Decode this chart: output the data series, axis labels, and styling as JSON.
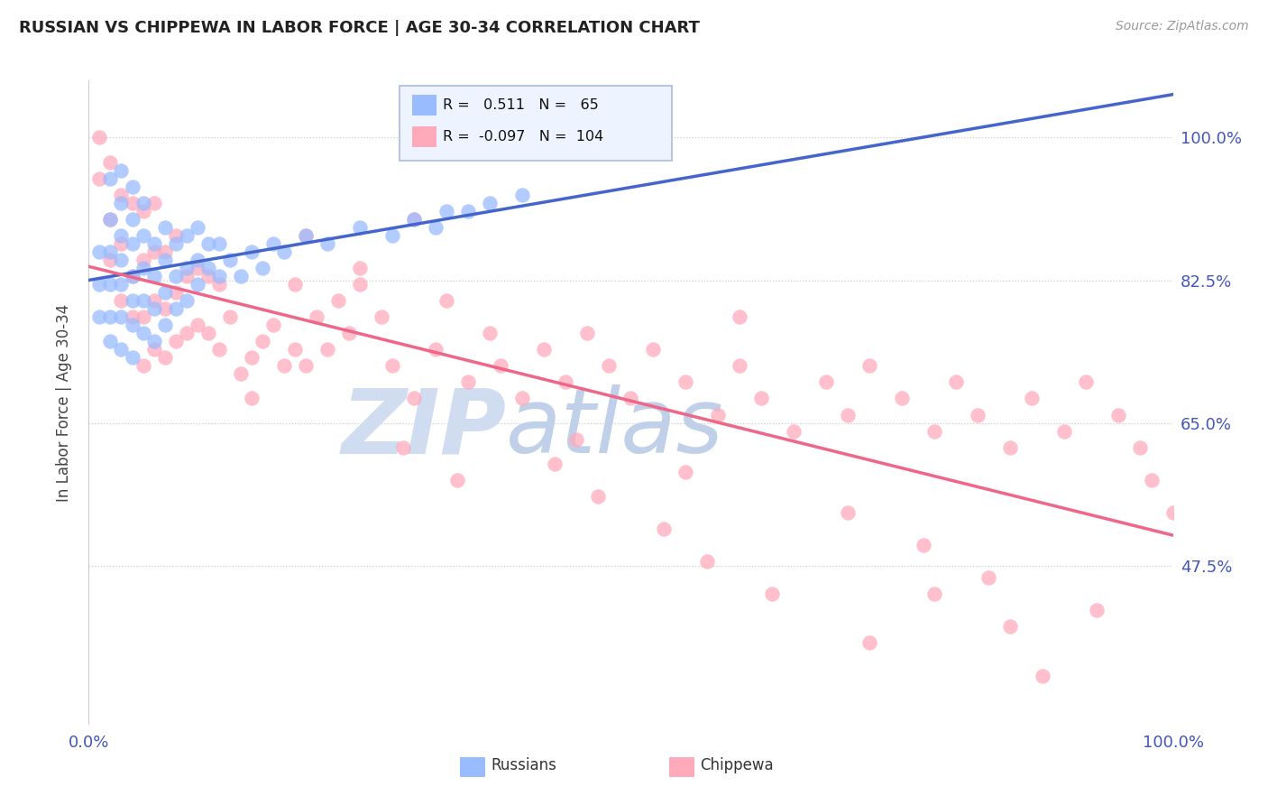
{
  "title": "RUSSIAN VS CHIPPEWA IN LABOR FORCE | AGE 30-34 CORRELATION CHART",
  "source": "Source: ZipAtlas.com",
  "ylabel": "In Labor Force | Age 30-34",
  "xlim": [
    0.0,
    1.0
  ],
  "ylim": [
    0.28,
    1.07
  ],
  "yticks": [
    0.475,
    0.65,
    0.825,
    1.0
  ],
  "ytick_labels": [
    "47.5%",
    "65.0%",
    "82.5%",
    "100.0%"
  ],
  "xticks": [
    0.0,
    1.0
  ],
  "xtick_labels": [
    "0.0%",
    "100.0%"
  ],
  "r_russian": 0.511,
  "n_russian": 65,
  "r_chippewa": -0.097,
  "n_chippewa": 104,
  "blue_dot_color": "#99BBFF",
  "pink_dot_color": "#FFAABB",
  "blue_line_color": "#4466CC",
  "pink_line_color": "#EE6688",
  "grid_color": "#CCCCCC",
  "legend_bg": "#EEF4FF",
  "legend_border": "#AABBDD",
  "title_color": "#222222",
  "source_color": "#999999",
  "tick_color": "#4455BB",
  "ylabel_color": "#444444",
  "russian_x": [
    0.01,
    0.01,
    0.01,
    0.02,
    0.02,
    0.02,
    0.02,
    0.02,
    0.02,
    0.03,
    0.03,
    0.03,
    0.03,
    0.03,
    0.03,
    0.03,
    0.04,
    0.04,
    0.04,
    0.04,
    0.04,
    0.04,
    0.04,
    0.05,
    0.05,
    0.05,
    0.05,
    0.05,
    0.06,
    0.06,
    0.06,
    0.06,
    0.07,
    0.07,
    0.07,
    0.07,
    0.08,
    0.08,
    0.08,
    0.09,
    0.09,
    0.09,
    0.1,
    0.1,
    0.1,
    0.11,
    0.11,
    0.12,
    0.12,
    0.13,
    0.14,
    0.15,
    0.16,
    0.17,
    0.18,
    0.2,
    0.22,
    0.25,
    0.28,
    0.3,
    0.32,
    0.33,
    0.35,
    0.37,
    0.4
  ],
  "russian_y": [
    0.78,
    0.82,
    0.86,
    0.75,
    0.78,
    0.82,
    0.86,
    0.9,
    0.95,
    0.74,
    0.78,
    0.82,
    0.85,
    0.88,
    0.92,
    0.96,
    0.73,
    0.77,
    0.8,
    0.83,
    0.87,
    0.9,
    0.94,
    0.76,
    0.8,
    0.84,
    0.88,
    0.92,
    0.75,
    0.79,
    0.83,
    0.87,
    0.77,
    0.81,
    0.85,
    0.89,
    0.79,
    0.83,
    0.87,
    0.8,
    0.84,
    0.88,
    0.82,
    0.85,
    0.89,
    0.84,
    0.87,
    0.83,
    0.87,
    0.85,
    0.83,
    0.86,
    0.84,
    0.87,
    0.86,
    0.88,
    0.87,
    0.89,
    0.88,
    0.9,
    0.89,
    0.91,
    0.91,
    0.92,
    0.93
  ],
  "chippewa_x": [
    0.01,
    0.01,
    0.02,
    0.02,
    0.02,
    0.03,
    0.03,
    0.03,
    0.04,
    0.04,
    0.04,
    0.05,
    0.05,
    0.05,
    0.05,
    0.06,
    0.06,
    0.06,
    0.06,
    0.07,
    0.07,
    0.07,
    0.08,
    0.08,
    0.08,
    0.09,
    0.09,
    0.1,
    0.1,
    0.11,
    0.11,
    0.12,
    0.12,
    0.13,
    0.14,
    0.15,
    0.16,
    0.17,
    0.18,
    0.19,
    0.2,
    0.21,
    0.22,
    0.23,
    0.24,
    0.25,
    0.27,
    0.28,
    0.3,
    0.32,
    0.33,
    0.35,
    0.37,
    0.38,
    0.4,
    0.42,
    0.44,
    0.46,
    0.48,
    0.5,
    0.52,
    0.55,
    0.58,
    0.6,
    0.62,
    0.65,
    0.68,
    0.7,
    0.72,
    0.75,
    0.78,
    0.8,
    0.82,
    0.85,
    0.87,
    0.9,
    0.92,
    0.95,
    0.97,
    0.98,
    1.0,
    0.43,
    0.47,
    0.53,
    0.57,
    0.63,
    0.15,
    0.19,
    0.29,
    0.34,
    0.6,
    0.7,
    0.77,
    0.83,
    0.88,
    0.93,
    0.2,
    0.25,
    0.3,
    0.72,
    0.78,
    0.85,
    0.45,
    0.55
  ],
  "chippewa_y": [
    0.95,
    1.0,
    0.85,
    0.9,
    0.97,
    0.8,
    0.87,
    0.93,
    0.78,
    0.83,
    0.92,
    0.72,
    0.78,
    0.85,
    0.91,
    0.74,
    0.8,
    0.86,
    0.92,
    0.73,
    0.79,
    0.86,
    0.75,
    0.81,
    0.88,
    0.76,
    0.83,
    0.77,
    0.84,
    0.76,
    0.83,
    0.74,
    0.82,
    0.78,
    0.71,
    0.73,
    0.75,
    0.77,
    0.72,
    0.74,
    0.72,
    0.78,
    0.74,
    0.8,
    0.76,
    0.82,
    0.78,
    0.72,
    0.68,
    0.74,
    0.8,
    0.7,
    0.76,
    0.72,
    0.68,
    0.74,
    0.7,
    0.76,
    0.72,
    0.68,
    0.74,
    0.7,
    0.66,
    0.72,
    0.68,
    0.64,
    0.7,
    0.66,
    0.72,
    0.68,
    0.64,
    0.7,
    0.66,
    0.62,
    0.68,
    0.64,
    0.7,
    0.66,
    0.62,
    0.58,
    0.54,
    0.6,
    0.56,
    0.52,
    0.48,
    0.44,
    0.68,
    0.82,
    0.62,
    0.58,
    0.78,
    0.54,
    0.5,
    0.46,
    0.34,
    0.42,
    0.88,
    0.84,
    0.9,
    0.38,
    0.44,
    0.4,
    0.63,
    0.59
  ]
}
